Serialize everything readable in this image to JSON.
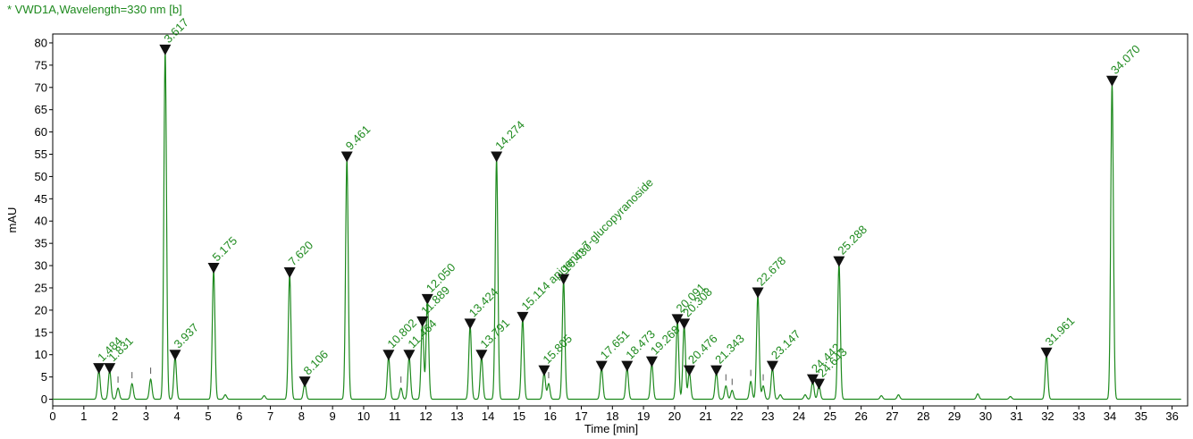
{
  "chart_data": {
    "type": "line",
    "title": "* VWD1A,Wavelength=330 nm [b]",
    "xlabel": "Time [min]",
    "ylabel": "mAU",
    "xlim": [
      0,
      36.5
    ],
    "ylim": [
      -1.5,
      82
    ],
    "x_ticks": [
      0,
      1,
      2,
      3,
      4,
      5,
      6,
      7,
      8,
      9,
      10,
      11,
      12,
      13,
      14,
      15,
      16,
      17,
      18,
      19,
      20,
      21,
      22,
      23,
      24,
      25,
      26,
      27,
      28,
      29,
      30,
      31,
      32,
      33,
      34,
      35,
      36
    ],
    "y_ticks": [
      0,
      5,
      10,
      15,
      20,
      25,
      30,
      35,
      40,
      45,
      50,
      55,
      60,
      65,
      70,
      75,
      80
    ],
    "grid": false,
    "trace_color": "#1e8a1e",
    "peaks": [
      {
        "rt": 1.484,
        "height": 6.5,
        "label": "1.484"
      },
      {
        "rt": 1.831,
        "height": 6.5,
        "label": "1.831"
      },
      {
        "rt": 3.617,
        "height": 78,
        "label": "3.617"
      },
      {
        "rt": 3.937,
        "height": 9.5,
        "label": "3.937"
      },
      {
        "rt": 5.175,
        "height": 29,
        "label": "5.175"
      },
      {
        "rt": 7.62,
        "height": 28,
        "label": "7.620"
      },
      {
        "rt": 8.106,
        "height": 3.5,
        "label": "8.106"
      },
      {
        "rt": 9.461,
        "height": 54,
        "label": "9.461"
      },
      {
        "rt": 10.802,
        "height": 9.5,
        "label": "10.802"
      },
      {
        "rt": 11.464,
        "height": 9.5,
        "label": "11.464"
      },
      {
        "rt": 11.889,
        "height": 17,
        "label": "11.889"
      },
      {
        "rt": 12.05,
        "height": 22,
        "label": "12.050"
      },
      {
        "rt": 13.424,
        "height": 16.5,
        "label": "13.424"
      },
      {
        "rt": 13.791,
        "height": 9.5,
        "label": "13.791"
      },
      {
        "rt": 14.274,
        "height": 54,
        "label": "14.274"
      },
      {
        "rt": 15.114,
        "height": 18,
        "label": "15.114 apigenin-7-glucopyranoside"
      },
      {
        "rt": 15.805,
        "height": 6,
        "label": "15.805"
      },
      {
        "rt": 16.43,
        "height": 26.5,
        "label": "16.430"
      },
      {
        "rt": 17.651,
        "height": 7,
        "label": "17.651"
      },
      {
        "rt": 18.473,
        "height": 7,
        "label": "18.473"
      },
      {
        "rt": 19.268,
        "height": 8,
        "label": "19.268"
      },
      {
        "rt": 20.091,
        "height": 17.5,
        "label": "20.091"
      },
      {
        "rt": 20.308,
        "height": 16.5,
        "label": "20.308"
      },
      {
        "rt": 20.476,
        "height": 6,
        "label": "20.476"
      },
      {
        "rt": 21.343,
        "height": 6,
        "label": "21.343"
      },
      {
        "rt": 22.678,
        "height": 23.5,
        "label": "22.678"
      },
      {
        "rt": 23.147,
        "height": 7,
        "label": "23.147"
      },
      {
        "rt": 24.442,
        "height": 4,
        "label": "24.442"
      },
      {
        "rt": 24.643,
        "height": 3,
        "label": "24.643"
      },
      {
        "rt": 25.288,
        "height": 30.5,
        "label": "25.288"
      },
      {
        "rt": 31.961,
        "height": 10,
        "label": "31.961"
      },
      {
        "rt": 34.07,
        "height": 71,
        "label": "34.070"
      }
    ],
    "minor_peaks": [
      {
        "rt": 2.1,
        "height": 2.5
      },
      {
        "rt": 2.55,
        "height": 3.5
      },
      {
        "rt": 3.15,
        "height": 4.5
      },
      {
        "rt": 5.55,
        "height": 1
      },
      {
        "rt": 6.8,
        "height": 0.8
      },
      {
        "rt": 11.2,
        "height": 2.5
      },
      {
        "rt": 15.95,
        "height": 3.5
      },
      {
        "rt": 21.65,
        "height": 3
      },
      {
        "rt": 21.85,
        "height": 2
      },
      {
        "rt": 22.45,
        "height": 4
      },
      {
        "rt": 22.85,
        "height": 3
      },
      {
        "rt": 23.4,
        "height": 1
      },
      {
        "rt": 24.2,
        "height": 1
      },
      {
        "rt": 26.65,
        "height": 0.8
      },
      {
        "rt": 27.2,
        "height": 1
      },
      {
        "rt": 29.75,
        "height": 1.2
      },
      {
        "rt": 30.8,
        "height": 0.6
      }
    ]
  }
}
